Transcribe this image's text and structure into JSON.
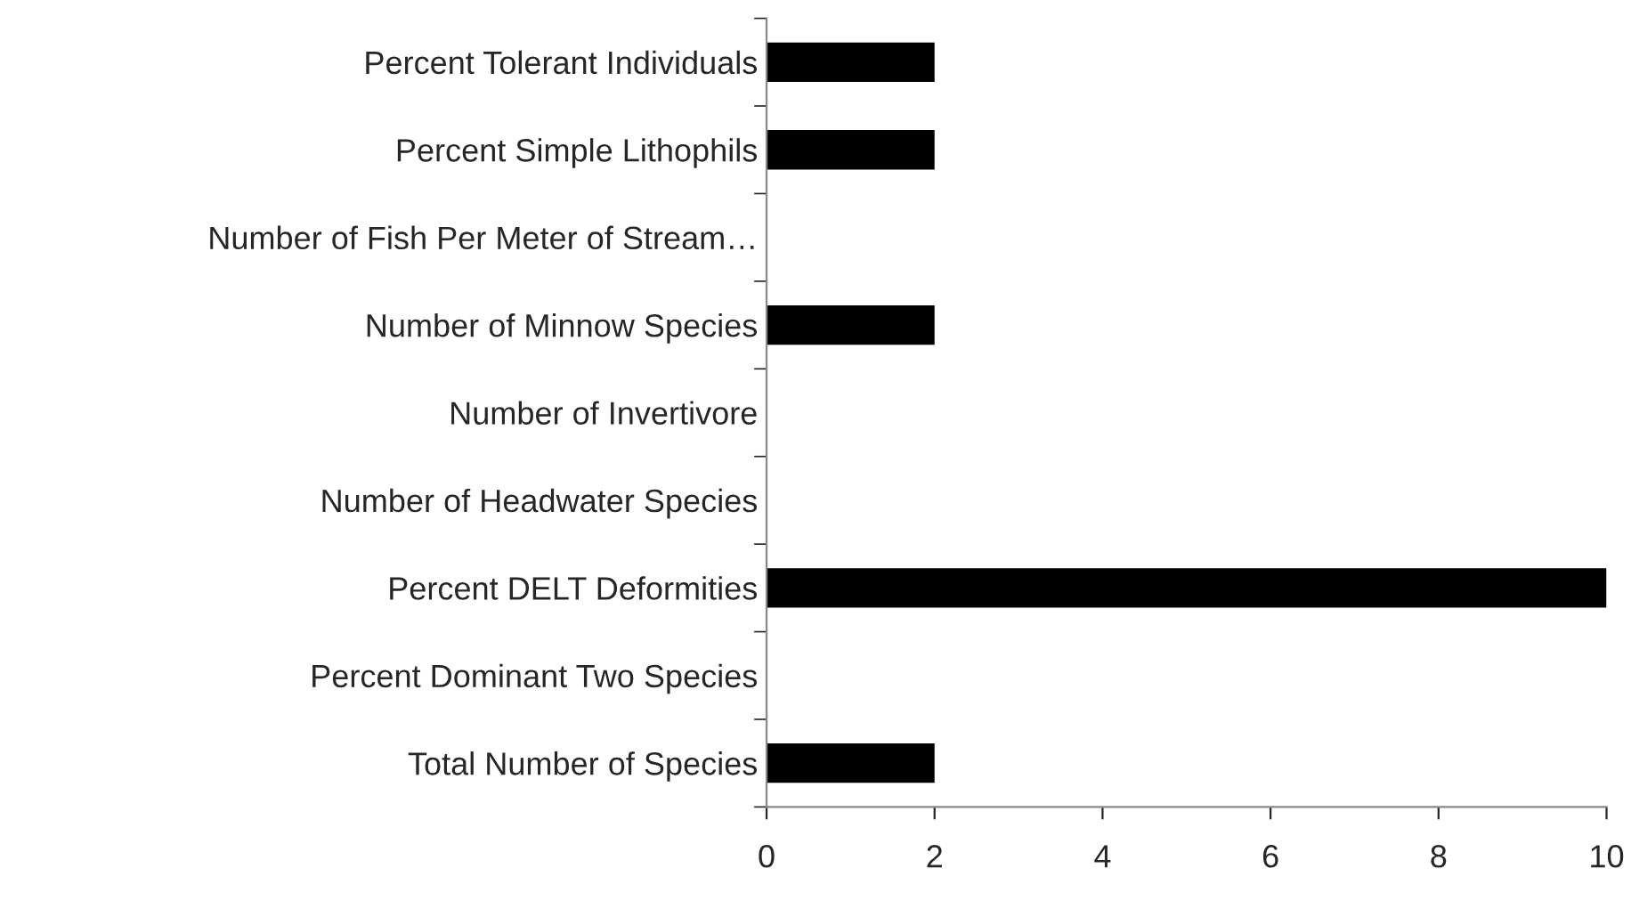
{
  "chart_data": {
    "type": "bar",
    "orientation": "horizontal",
    "categories": [
      "Percent Tolerant Individuals",
      "Percent Simple Lithophils",
      "Number of Fish Per Meter of Stream…",
      "Number of Minnow Species",
      "Number of Invertivore",
      "Number of Headwater Species",
      "Percent DELT Deformities",
      "Percent Dominant Two Species",
      "Total Number of Species"
    ],
    "values": [
      2,
      2,
      0,
      2,
      0,
      0,
      10,
      0,
      2
    ],
    "color": "#000000",
    "xlim": [
      0,
      10
    ],
    "xticks": [
      0,
      2,
      4,
      6,
      8,
      10
    ],
    "grid": false,
    "legend": false
  }
}
